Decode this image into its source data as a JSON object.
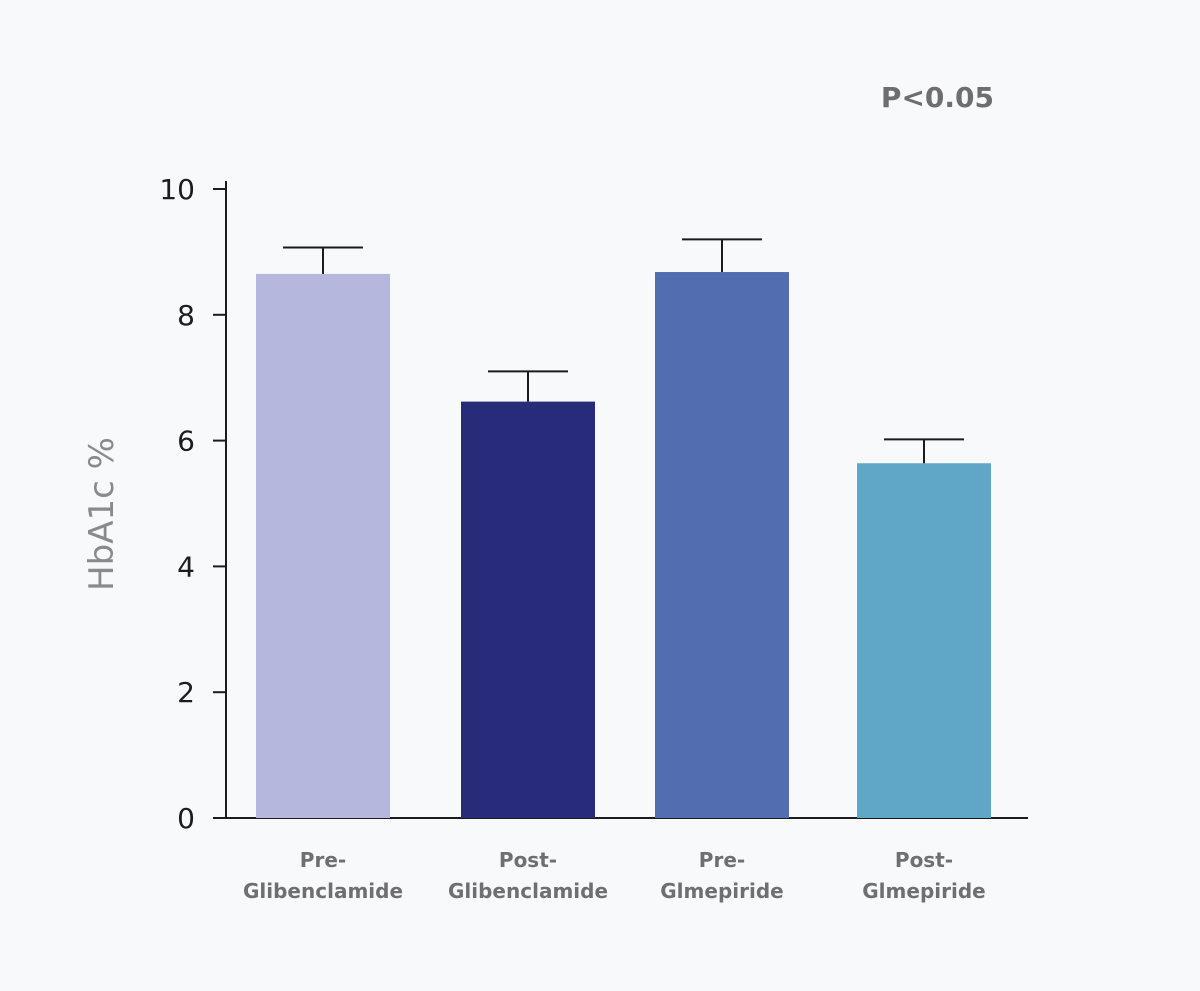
{
  "chart_data": {
    "type": "bar",
    "categories": [
      [
        "Pre-",
        "Glibenclamide"
      ],
      [
        "Post-",
        "Glibenclamide"
      ],
      [
        "Pre-",
        "Glmepiride"
      ],
      [
        "Post-",
        "Glmepiride"
      ]
    ],
    "values": [
      8.65,
      6.62,
      8.68,
      5.64
    ],
    "errors": [
      0.42,
      0.48,
      0.52,
      0.38
    ],
    "colors": [
      "#b5b7dd",
      "#282b7a",
      "#526eb1",
      "#60a6c7"
    ],
    "title": "",
    "xlabel": "",
    "ylabel": "HbA1c %",
    "ylim": [
      0,
      10
    ],
    "yticks": [
      0,
      2,
      4,
      6,
      8,
      10
    ],
    "annotation": "P<0.05",
    "grid": false,
    "legend": "none"
  }
}
